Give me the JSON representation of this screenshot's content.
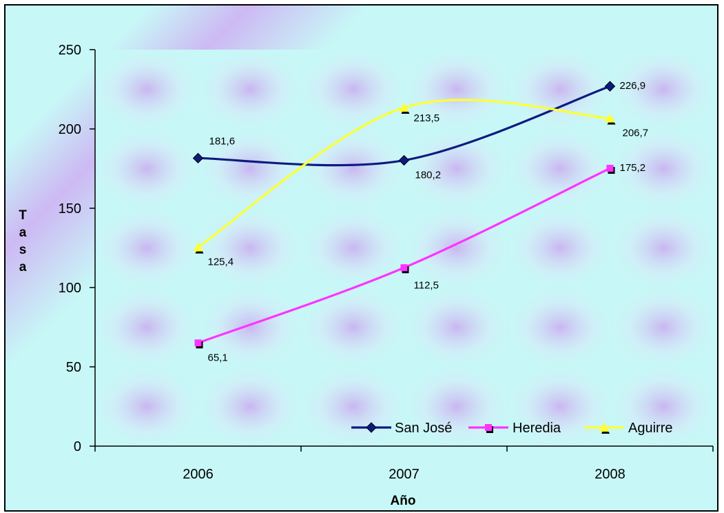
{
  "chart_data": {
    "type": "line",
    "categories": [
      "2006",
      "2007",
      "2008"
    ],
    "series": [
      {
        "name": "San José",
        "values": [
          181.6,
          180.2,
          226.9
        ],
        "labels": [
          "181,6",
          "180,2",
          "226,9"
        ],
        "color": "#0d1b80",
        "marker": "diamond"
      },
      {
        "name": "Heredia",
        "values": [
          65.1,
          112.5,
          175.2
        ],
        "labels": [
          "65,1",
          "112,5",
          "175,2"
        ],
        "color": "#ff33ff",
        "marker": "square"
      },
      {
        "name": "Aguirre",
        "values": [
          125.4,
          213.5,
          206.7
        ],
        "labels": [
          "125,4",
          "213,5",
          "206,7"
        ],
        "color": "#ffff33",
        "marker": "triangle"
      }
    ],
    "xlabel": "Año",
    "ylabel": "Tasa",
    "ylim": [
      0,
      250
    ],
    "yticks": [
      "0",
      "50",
      "100",
      "150",
      "200",
      "250"
    ],
    "legend_position": "bottom-right",
    "grid": false
  }
}
